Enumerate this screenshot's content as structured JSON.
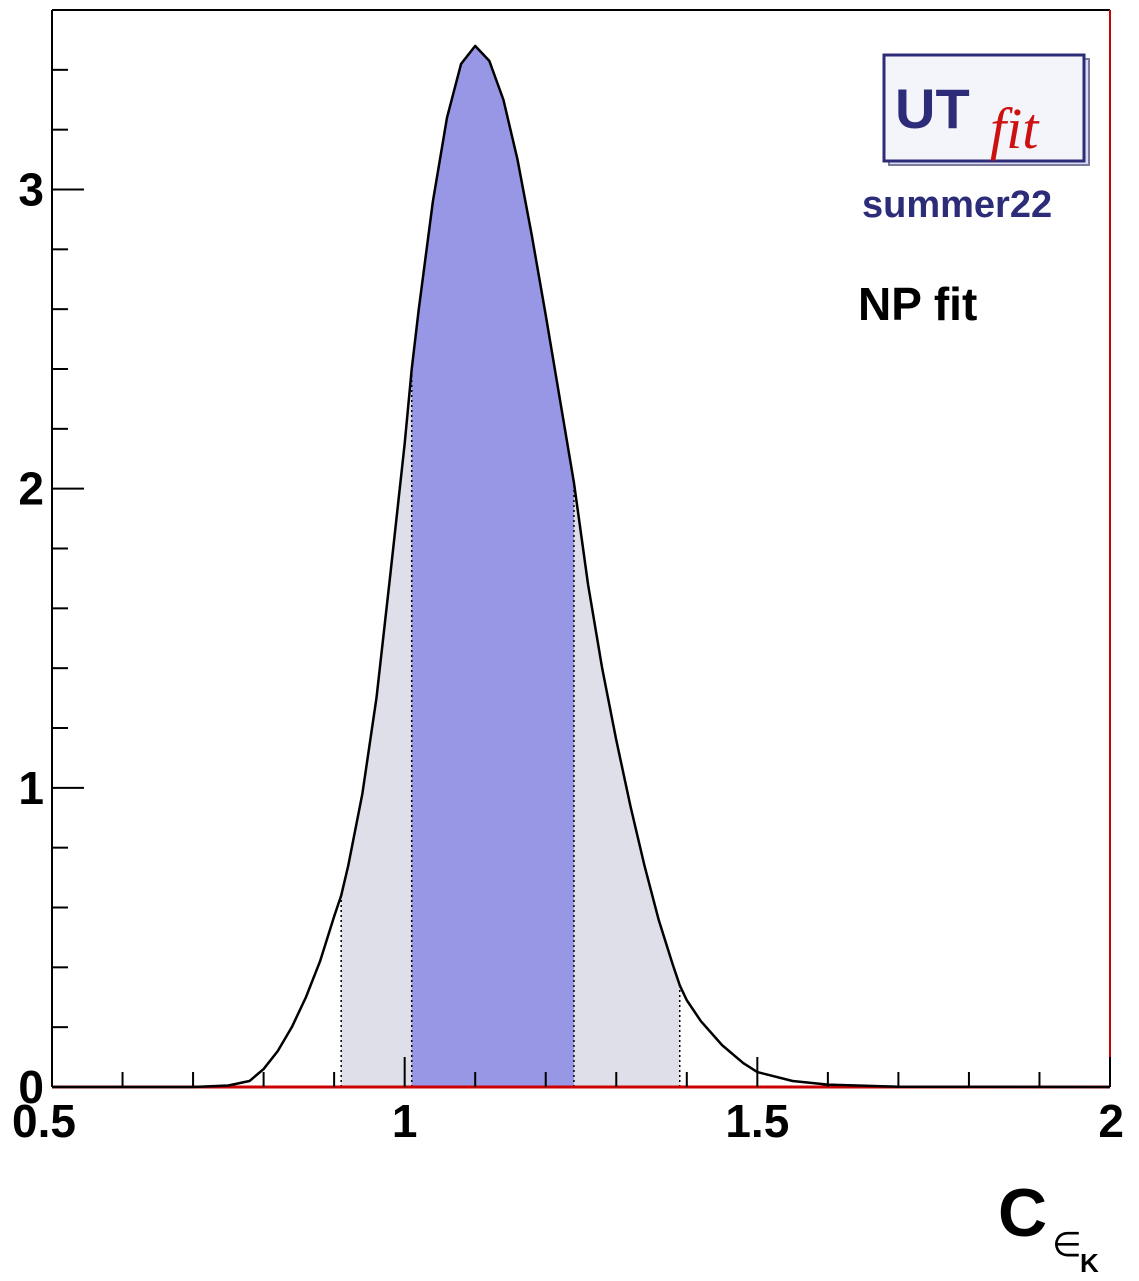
{
  "chart_data": {
    "type": "area",
    "title": "",
    "xlabel": "C",
    "xlabel_sub": "∈",
    "xlabel_subsub": "K",
    "ylabel": "",
    "xlim": [
      0.5,
      2.0
    ],
    "ylim": [
      0,
      3.6
    ],
    "x_ticks": [
      "0.5",
      "1",
      "1.5",
      "2"
    ],
    "y_ticks": [
      "0",
      "1",
      "2",
      "3"
    ],
    "x": [
      0.5,
      0.7,
      0.75,
      0.78,
      0.8,
      0.82,
      0.84,
      0.86,
      0.88,
      0.9,
      0.91,
      0.92,
      0.94,
      0.96,
      0.98,
      1.0,
      1.01,
      1.02,
      1.04,
      1.06,
      1.08,
      1.1,
      1.12,
      1.14,
      1.16,
      1.18,
      1.2,
      1.22,
      1.24,
      1.25,
      1.26,
      1.28,
      1.3,
      1.32,
      1.34,
      1.36,
      1.38,
      1.39,
      1.4,
      1.42,
      1.45,
      1.48,
      1.5,
      1.55,
      1.6,
      1.7,
      2.0
    ],
    "y": [
      0.0,
      0.0,
      0.005,
      0.02,
      0.06,
      0.12,
      0.2,
      0.3,
      0.42,
      0.57,
      0.64,
      0.74,
      0.98,
      1.3,
      1.72,
      2.15,
      2.4,
      2.6,
      2.96,
      3.24,
      3.42,
      3.48,
      3.43,
      3.3,
      3.1,
      2.85,
      2.58,
      2.3,
      2.02,
      1.85,
      1.68,
      1.4,
      1.16,
      0.94,
      0.74,
      0.56,
      0.41,
      0.34,
      0.29,
      0.22,
      0.14,
      0.08,
      0.05,
      0.02,
      0.008,
      0.001,
      0.0
    ],
    "interval_68": [
      1.01,
      1.24
    ],
    "interval_95": [
      0.91,
      1.39
    ],
    "colors": {
      "inner": "#9797e6",
      "outer": "#dedfe8",
      "curve": "#000000",
      "frame_right": "#cc0000",
      "logo_blue": "#2c2c78"
    },
    "annotations": [
      "NP fit"
    ],
    "logo": {
      "ut": "UT",
      "fit": "fit",
      "season": "summer22"
    }
  }
}
